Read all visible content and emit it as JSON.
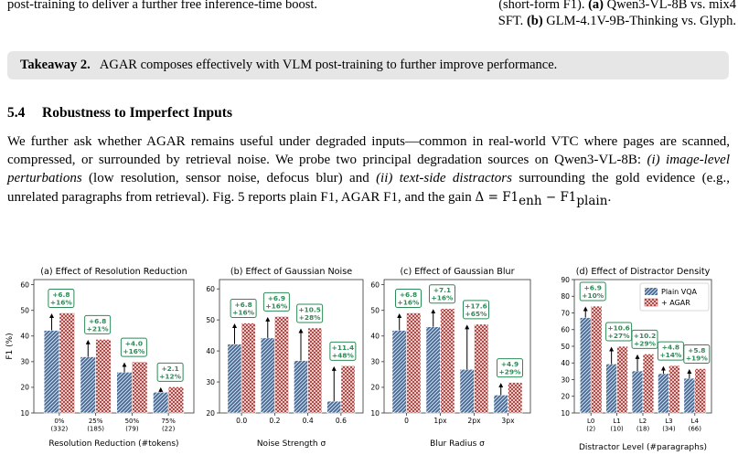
{
  "text": {
    "top_left": "post-training to deliver a further free inference-time boost.",
    "top_right_line1": "(short-form F1).",
    "top_right_a": "(a)",
    "top_right_a_text": "Qwen3-VL-8B vs. mix4",
    "top_right_line2": "SFT.",
    "top_right_b": "(b)",
    "top_right_b_text": "GLM-4.1V-9B-Thinking vs. Glyph.",
    "takeaway_label": "Takeaway 2.",
    "takeaway_text": "AGAR composes effectively with VLM post-training to further improve performance.",
    "section_number": "5.4",
    "section_title": "Robustness to Imperfect Inputs",
    "p1": "We further ask whether AGAR remains useful under degraded inputs—common in real-world VTC where pages are scanned, compressed, or surrounded by retrieval noise. We probe two principal degradation sources on Qwen3-VL-8B: ",
    "p2": "(i) image-level perturbations",
    "p3": " (low resolution, sensor noise, defocus blur) and ",
    "p4": "(ii) text-side distractors",
    "p5": " surrounding the gold evidence (e.g., unrelated paragraphs from retrieval). Fig. 5 reports plain F1, AGAR F1, and the gain ",
    "p6": "Δ = F1",
    "p7": "enh",
    "p8": " − F1",
    "p9": "plain",
    "p10": "."
  },
  "colors": {
    "plain": "#4a6a91",
    "agar": "#b03a36",
    "gain": "#2e8b57"
  },
  "chart_data": [
    {
      "type": "bar",
      "title": "(a) Effect of Resolution Reduction",
      "xlabel": "Resolution Reduction (#tokens)",
      "ylabel": "F1 (%)",
      "ylim": [
        10,
        62
      ],
      "yticks": [
        10,
        20,
        30,
        40,
        50,
        60
      ],
      "categories": [
        "0%\n(332)",
        "25%\n(185)",
        "50%\n(79)",
        "75%\n(22)"
      ],
      "series": [
        {
          "name": "Plain VQA",
          "values": [
            42.2,
            31.9,
            25.9,
            18.1
          ]
        },
        {
          "name": "+ AGAR",
          "values": [
            49.0,
            38.7,
            29.9,
            20.2
          ]
        }
      ],
      "annotations": [
        "+6.8\n+16%",
        "+6.8\n+21%",
        "+4.0\n+16%",
        "+2.1\n+12%"
      ]
    },
    {
      "type": "bar",
      "title": "(b) Effect of Gaussian Noise",
      "xlabel": "Noise Strength σ",
      "ylabel": "",
      "ylim": [
        20,
        63
      ],
      "yticks": [
        20,
        30,
        40,
        50,
        60
      ],
      "categories": [
        "0.0",
        "0.2",
        "0.4",
        "0.6"
      ],
      "series": [
        {
          "name": "Plain VQA",
          "values": [
            42.2,
            44.2,
            36.9,
            23.8
          ]
        },
        {
          "name": "+ AGAR",
          "values": [
            49.0,
            51.1,
            47.4,
            35.2
          ]
        }
      ],
      "annotations": [
        "+6.8\n+16%",
        "+6.9\n+16%",
        "+10.5\n+28%",
        "+11.4\n+48%"
      ]
    },
    {
      "type": "bar",
      "title": "(c) Effect of Gaussian Blur",
      "xlabel": "Blur Radius σ",
      "ylabel": "",
      "ylim": [
        10,
        62
      ],
      "yticks": [
        10,
        20,
        30,
        40,
        50,
        60
      ],
      "categories": [
        "0",
        "1px",
        "2px",
        "3px"
      ],
      "series": [
        {
          "name": "Plain VQA",
          "values": [
            42.2,
            43.6,
            27.0,
            17.0
          ]
        },
        {
          "name": "+ AGAR",
          "values": [
            49.0,
            50.7,
            44.6,
            21.9
          ]
        }
      ],
      "annotations": [
        "+6.8\n+16%",
        "+7.1\n+16%",
        "+17.6\n+65%",
        "+4.9\n+29%"
      ]
    },
    {
      "type": "bar",
      "title": "(d) Effect of Distractor Density",
      "xlabel": "Distractor Level (#paragraphs)",
      "ylabel": "",
      "ylim": [
        10,
        90
      ],
      "yticks": [
        10,
        20,
        30,
        40,
        50,
        60,
        70,
        80,
        90
      ],
      "categories": [
        "L0\n(2)",
        "L1\n(10)",
        "L2\n(18)",
        "L3\n(34)",
        "L4\n(66)"
      ],
      "series": [
        {
          "name": "Plain VQA",
          "values": [
            67.2,
            39.4,
            35.2,
            33.6,
            30.8
          ]
        },
        {
          "name": "+ AGAR",
          "values": [
            74.1,
            50.0,
            45.4,
            38.4,
            36.6
          ]
        }
      ],
      "annotations": [
        "+6.9\n+10%",
        "+10.6\n+27%",
        "+10.2\n+29%",
        "+4.8\n+14%",
        "+5.8\n+19%"
      ],
      "legend": "top-right"
    }
  ]
}
